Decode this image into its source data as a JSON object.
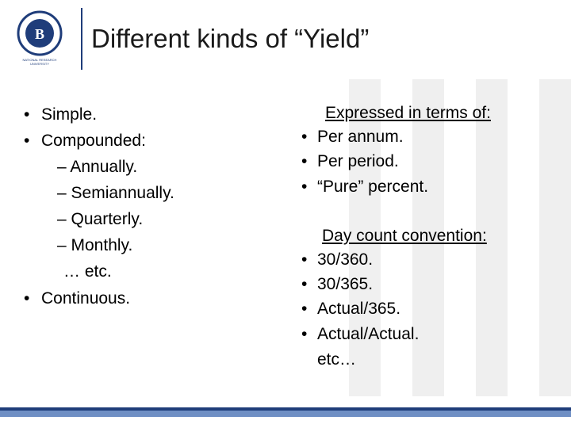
{
  "header": {
    "logo_text": "NATIONAL RESEARCH UNIVERSITY",
    "title": "Different kinds of “Yield”"
  },
  "left_list": [
    {
      "bullet": "•",
      "text": "Simple."
    },
    {
      "bullet": "•",
      "text": "Compounded:"
    },
    {
      "text": "– Annually."
    },
    {
      "text": "– Semiannually."
    },
    {
      "text": "– Quarterly."
    },
    {
      "text": "– Monthly."
    },
    {
      "text": "… etc."
    },
    {
      "bullet": "•",
      "text": "Continuous."
    }
  ],
  "right_sections": [
    {
      "heading": "Expressed in terms of:",
      "items": [
        {
          "bullet": "•",
          "text": "Per annum."
        },
        {
          "bullet": "•",
          "text": "Per period."
        },
        {
          "bullet": "•",
          "text": "“Pure” percent."
        }
      ]
    },
    {
      "heading": "Day count convention:",
      "items": [
        {
          "bullet": "•",
          "text": "30/360."
        },
        {
          "bullet": "•",
          "text": "30/365."
        },
        {
          "bullet": "•",
          "text": "Actual/365."
        },
        {
          "bullet": "•",
          "text": "Actual/Actual."
        },
        {
          "text": "etc…"
        }
      ]
    }
  ]
}
